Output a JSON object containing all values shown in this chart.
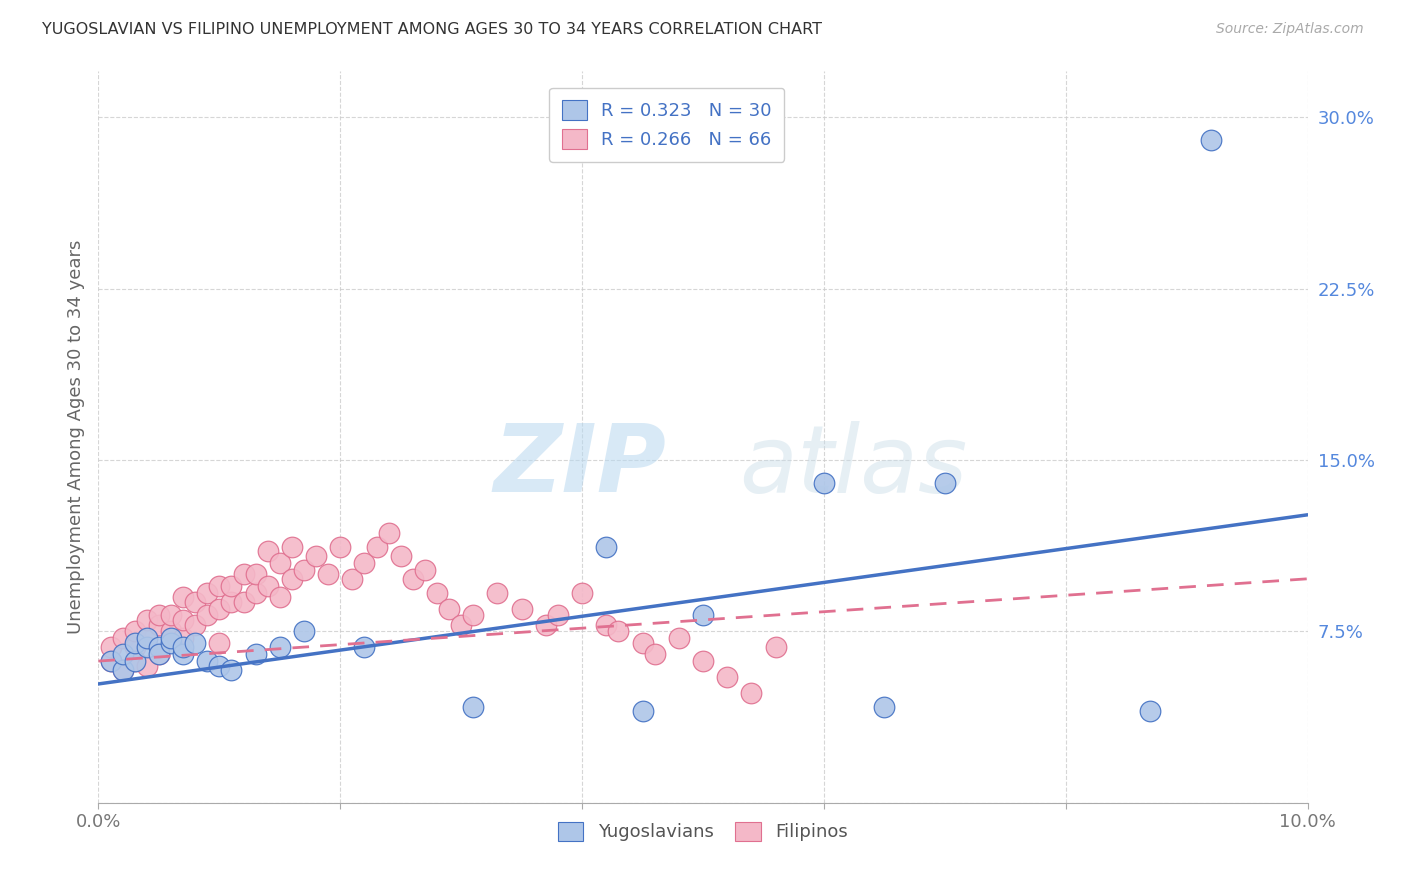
{
  "title": "YUGOSLAVIAN VS FILIPINO UNEMPLOYMENT AMONG AGES 30 TO 34 YEARS CORRELATION CHART",
  "source": "Source: ZipAtlas.com",
  "ylabel": "Unemployment Among Ages 30 to 34 years",
  "xlim": [
    0.0,
    0.1
  ],
  "ylim": [
    0.0,
    0.32
  ],
  "xticks": [
    0.0,
    0.02,
    0.04,
    0.06,
    0.08,
    0.1
  ],
  "yticks": [
    0.0,
    0.075,
    0.15,
    0.225,
    0.3
  ],
  "xtick_labels": [
    "0.0%",
    "",
    "",
    "",
    "",
    "10.0%"
  ],
  "ytick_labels": [
    "",
    "7.5%",
    "15.0%",
    "22.5%",
    "30.0%"
  ],
  "background_color": "#ffffff",
  "grid_color": "#cccccc",
  "watermark_zip": "ZIP",
  "watermark_atlas": "atlas",
  "yugoslavian_color": "#aec6e8",
  "filipino_color": "#f4b8c8",
  "yugoslavian_edge_color": "#4472c4",
  "filipino_edge_color": "#e07090",
  "yugoslavian_line_color": "#4472c4",
  "filipino_line_color": "#e07090",
  "legend_R_yugo": "R = 0.323",
  "legend_N_yugo": "N = 30",
  "legend_R_fil": "R = 0.266",
  "legend_N_fil": "N = 66",
  "yugo_x": [
    0.001,
    0.002,
    0.002,
    0.003,
    0.003,
    0.004,
    0.004,
    0.005,
    0.005,
    0.006,
    0.006,
    0.007,
    0.007,
    0.008,
    0.009,
    0.01,
    0.011,
    0.013,
    0.015,
    0.017,
    0.022,
    0.031,
    0.042,
    0.045,
    0.05,
    0.06,
    0.065,
    0.07,
    0.087,
    0.092
  ],
  "yugo_y": [
    0.062,
    0.058,
    0.065,
    0.062,
    0.07,
    0.068,
    0.072,
    0.068,
    0.065,
    0.07,
    0.072,
    0.065,
    0.068,
    0.07,
    0.062,
    0.06,
    0.058,
    0.065,
    0.068,
    0.075,
    0.068,
    0.042,
    0.112,
    0.04,
    0.082,
    0.14,
    0.042,
    0.14,
    0.04,
    0.29
  ],
  "fil_x": [
    0.001,
    0.001,
    0.002,
    0.002,
    0.003,
    0.003,
    0.003,
    0.004,
    0.004,
    0.004,
    0.005,
    0.005,
    0.005,
    0.006,
    0.006,
    0.007,
    0.007,
    0.007,
    0.008,
    0.008,
    0.009,
    0.009,
    0.01,
    0.01,
    0.01,
    0.011,
    0.011,
    0.012,
    0.012,
    0.013,
    0.013,
    0.014,
    0.014,
    0.015,
    0.015,
    0.016,
    0.016,
    0.017,
    0.018,
    0.019,
    0.02,
    0.021,
    0.022,
    0.023,
    0.024,
    0.025,
    0.026,
    0.027,
    0.028,
    0.029,
    0.03,
    0.031,
    0.033,
    0.035,
    0.037,
    0.038,
    0.04,
    0.042,
    0.043,
    0.045,
    0.046,
    0.048,
    0.05,
    0.052,
    0.054,
    0.056
  ],
  "fil_y": [
    0.062,
    0.068,
    0.058,
    0.072,
    0.062,
    0.068,
    0.075,
    0.06,
    0.072,
    0.08,
    0.065,
    0.078,
    0.082,
    0.075,
    0.082,
    0.072,
    0.08,
    0.09,
    0.078,
    0.088,
    0.082,
    0.092,
    0.07,
    0.085,
    0.095,
    0.088,
    0.095,
    0.088,
    0.1,
    0.092,
    0.1,
    0.095,
    0.11,
    0.09,
    0.105,
    0.112,
    0.098,
    0.102,
    0.108,
    0.1,
    0.112,
    0.098,
    0.105,
    0.112,
    0.118,
    0.108,
    0.098,
    0.102,
    0.092,
    0.085,
    0.078,
    0.082,
    0.092,
    0.085,
    0.078,
    0.082,
    0.092,
    0.078,
    0.075,
    0.07,
    0.065,
    0.072,
    0.062,
    0.055,
    0.048,
    0.068
  ],
  "yugo_line_x0": 0.0,
  "yugo_line_y0": 0.052,
  "yugo_line_x1": 0.1,
  "yugo_line_y1": 0.126,
  "fil_line_x0": 0.0,
  "fil_line_y0": 0.062,
  "fil_line_x1": 0.1,
  "fil_line_y1": 0.098
}
